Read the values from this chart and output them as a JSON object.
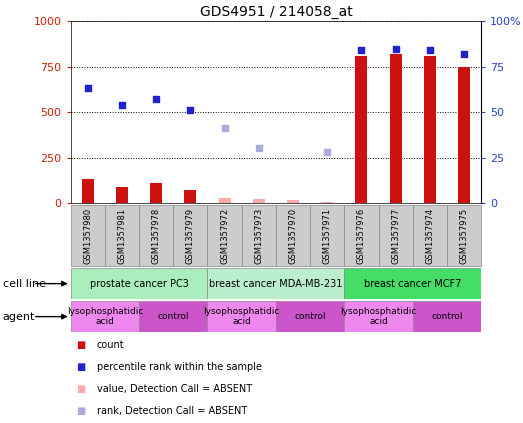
{
  "title": "GDS4951 / 214058_at",
  "samples": [
    "GSM1357980",
    "GSM1357981",
    "GSM1357978",
    "GSM1357979",
    "GSM1357972",
    "GSM1357973",
    "GSM1357970",
    "GSM1357971",
    "GSM1357976",
    "GSM1357977",
    "GSM1357974",
    "GSM1357975"
  ],
  "count_present": [
    130,
    90,
    110,
    70,
    0,
    0,
    0,
    0,
    810,
    820,
    810,
    750
  ],
  "count_absent": [
    0,
    0,
    0,
    0,
    25,
    20,
    15,
    5,
    0,
    0,
    0,
    0
  ],
  "rank_present": [
    630,
    540,
    570,
    510,
    0,
    0,
    0,
    0,
    840,
    845,
    840,
    820
  ],
  "rank_absent": [
    0,
    0,
    0,
    0,
    415,
    305,
    0,
    278,
    0,
    0,
    0,
    0
  ],
  "cell_lines": [
    {
      "label": "prostate cancer PC3",
      "start": 0,
      "end": 4,
      "color": "#aaeebb"
    },
    {
      "label": "breast cancer MDA-MB-231",
      "start": 4,
      "end": 8,
      "color": "#bbeecc"
    },
    {
      "label": "breast cancer MCF7",
      "start": 8,
      "end": 12,
      "color": "#44dd66"
    }
  ],
  "agents": [
    {
      "label": "lysophosphatidic\nacid",
      "start": 0,
      "end": 2,
      "color": "#ee88ee"
    },
    {
      "label": "control",
      "start": 2,
      "end": 4,
      "color": "#cc55cc"
    },
    {
      "label": "lysophosphatidic\nacid",
      "start": 4,
      "end": 6,
      "color": "#ee88ee"
    },
    {
      "label": "control",
      "start": 6,
      "end": 8,
      "color": "#cc55cc"
    },
    {
      "label": "lysophosphatidic\nacid",
      "start": 8,
      "end": 10,
      "color": "#ee88ee"
    },
    {
      "label": "control",
      "start": 10,
      "end": 12,
      "color": "#cc55cc"
    }
  ],
  "ylim": [
    0,
    1000
  ],
  "yticks_left": [
    0,
    250,
    500,
    750,
    1000
  ],
  "ytick_labels_left": [
    "0",
    "250",
    "500",
    "750",
    "1000"
  ],
  "ytick_labels_right": [
    "0",
    "25",
    "50",
    "75",
    "100%"
  ],
  "bar_color_present": "#cc1111",
  "bar_color_absent": "#ffaaaa",
  "dot_color_present": "#2222cc",
  "dot_color_absent": "#aaaadd",
  "bar_width": 0.35,
  "sample_box_color": "#cccccc",
  "sample_box_edge": "#888888"
}
